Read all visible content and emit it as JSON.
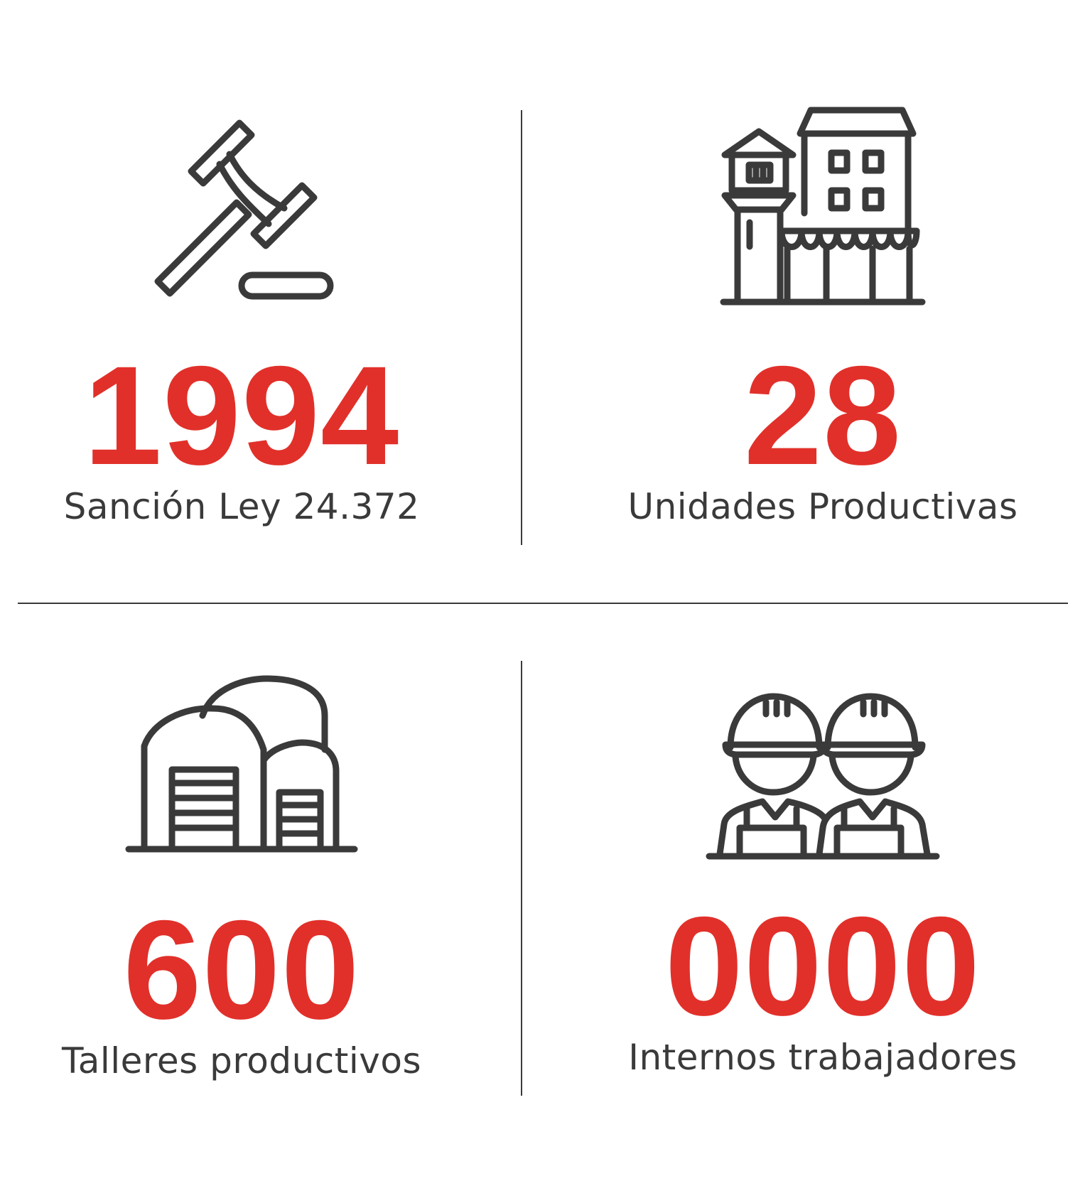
{
  "colors": {
    "accent": "#e1302a",
    "text": "#3a3a3a",
    "icon": "#3a3a3a",
    "divider": "#3a3a3a",
    "background": "#ffffff"
  },
  "stats": [
    {
      "icon": "gavel-icon",
      "value": "1994",
      "label": "Sanción Ley 24.372"
    },
    {
      "icon": "prison-buildings-icon",
      "value": "28",
      "label": "Unidades Productivas"
    },
    {
      "icon": "warehouse-icon",
      "value": "600",
      "label": "Talleres productivos"
    },
    {
      "icon": "workers-icon",
      "value": "0000",
      "label": "Internos trabajadores"
    }
  ]
}
